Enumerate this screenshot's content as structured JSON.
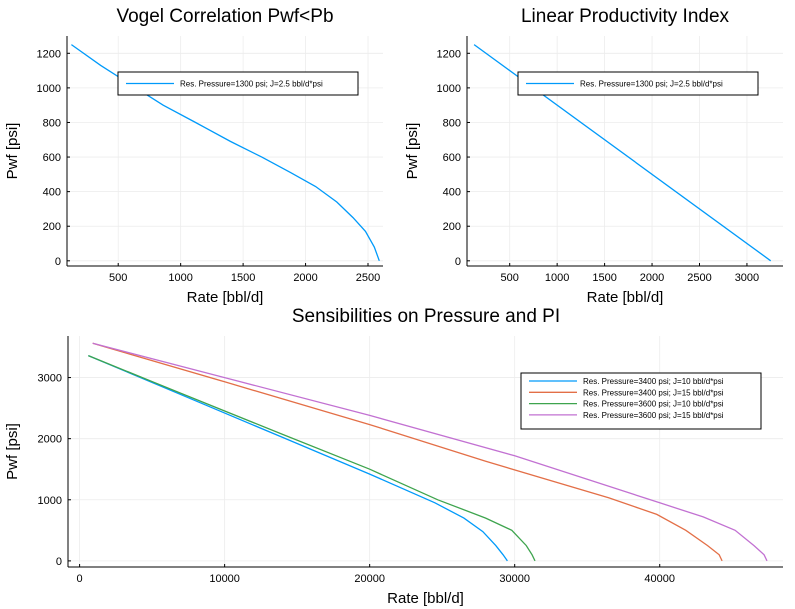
{
  "chart_data": [
    {
      "type": "line",
      "title": "Vogel Correlation Pwf<Pb",
      "xlabel": "Rate [bbl/d]",
      "ylabel": "Pwf [psi]",
      "xlim": [
        90,
        2620
      ],
      "ylim": [
        -30,
        1300
      ],
      "xticks": [
        500,
        1000,
        1500,
        2000,
        2500
      ],
      "yticks": [
        0,
        200,
        400,
        600,
        800,
        1000,
        1200
      ],
      "grid": true,
      "legend_position": "top-right",
      "series": [
        {
          "name": "Res. Pressure=1300 psi; J=2.5 bbl/d*psi",
          "color": "#009AFA",
          "x": [
            125,
            360,
            620,
            860,
            1120,
            1400,
            1650,
            1880,
            2080,
            2250,
            2380,
            2480,
            2550,
            2590
          ],
          "y": [
            1250,
            1130,
            1010,
            900,
            800,
            690,
            600,
            510,
            430,
            340,
            250,
            170,
            80,
            0
          ]
        }
      ]
    },
    {
      "type": "line",
      "title": "Linear Productivity Index",
      "xlabel": "Rate [bbl/d]",
      "ylabel": "Pwf [psi]",
      "xlim": [
        50,
        3380
      ],
      "ylim": [
        -30,
        1300
      ],
      "xticks": [
        500,
        1000,
        1500,
        2000,
        2500,
        3000
      ],
      "yticks": [
        0,
        200,
        400,
        600,
        800,
        1000,
        1200
      ],
      "grid": true,
      "legend_position": "top-right",
      "series": [
        {
          "name": "Res. Pressure=1300 psi; J=2.5 bbl/d*psi",
          "color": "#009AFA",
          "x": [
            125,
            3250
          ],
          "y": [
            1250,
            0
          ]
        }
      ]
    },
    {
      "type": "line",
      "title": "Sensibilities on Pressure and PI",
      "xlabel": "Rate [bbl/d]",
      "ylabel": "Pwf [psi]",
      "xlim": [
        -800,
        48500
      ],
      "ylim": [
        -100,
        3680
      ],
      "xticks": [
        0,
        10000,
        20000,
        30000,
        40000
      ],
      "yticks": [
        0,
        1000,
        2000,
        3000
      ],
      "grid": true,
      "legend_position": "top-right",
      "series": [
        {
          "name": "Res. Pressure=3400 psi; J=10 bbl/d*psi",
          "color": "#009AFA",
          "x": [
            600,
            7000,
            14000,
            20000,
            24500,
            26500,
            27800,
            28700,
            29200,
            29500
          ],
          "y": [
            3360,
            2720,
            2020,
            1420,
            950,
            700,
            480,
            250,
            100,
            0
          ]
        },
        {
          "name": "Res. Pressure=3400 psi; J=15 bbl/d*psi",
          "color": "#E36F47",
          "x": [
            900,
            10000,
            20000,
            28000,
            36500,
            39800,
            41800,
            43300,
            44100,
            44300
          ],
          "y": [
            3560,
            2930,
            2230,
            1630,
            1030,
            760,
            500,
            250,
            100,
            0
          ]
        },
        {
          "name": "Res. Pressure=3600 psi; J=10 bbl/d*psi",
          "color": "#3EA44E",
          "x": [
            600,
            7000,
            14000,
            20000,
            24700,
            28000,
            29800,
            30800,
            31200,
            31400
          ],
          "y": [
            3360,
            2740,
            2070,
            1500,
            1000,
            700,
            500,
            250,
            100,
            0
          ]
        },
        {
          "name": "Res. Pressure=3600 psi; J=15 bbl/d*psi",
          "color": "#C271D2",
          "x": [
            900,
            10000,
            20000,
            30000,
            40000,
            43000,
            45200,
            46500,
            47200,
            47400
          ],
          "y": [
            3560,
            3000,
            2380,
            1720,
            950,
            720,
            500,
            250,
            100,
            0
          ]
        }
      ]
    }
  ]
}
